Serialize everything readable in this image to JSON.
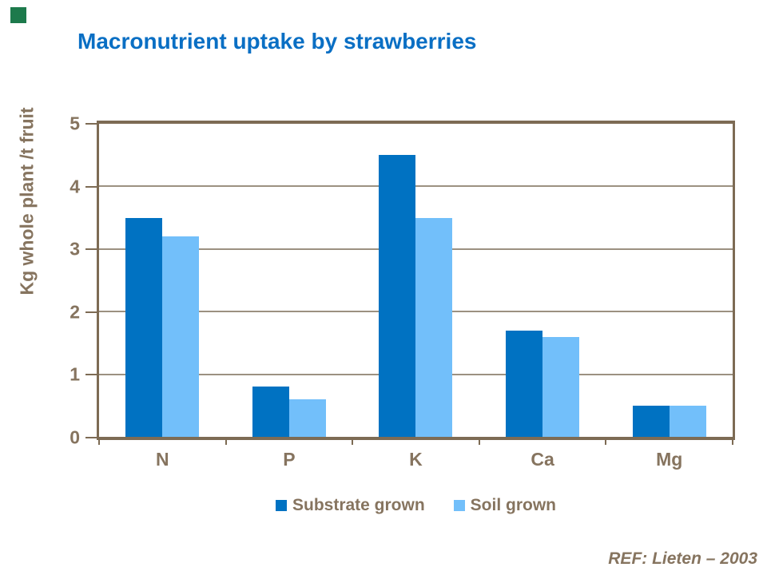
{
  "title": "Macronutrient uptake by strawberries",
  "ref_note": "REF:  Lieten – 2003",
  "colors": {
    "title_blue": "#0A6FC4",
    "axis_text_brown": "#86745F",
    "frame_brown": "#7D6B54",
    "gridline": "#9C9181",
    "substrate_blue": "#0072C2",
    "soil_blue": "#72BFFA",
    "logo_green": "#1D7A4C"
  },
  "chart_data": {
    "type": "bar",
    "title": "Macronutrient uptake by strawberries",
    "categories": [
      "N",
      "P",
      "K",
      "Ca",
      "Mg"
    ],
    "series": [
      {
        "name": "Substrate grown",
        "color": "#0072C2",
        "values": [
          3.5,
          0.8,
          4.5,
          1.7,
          0.5
        ]
      },
      {
        "name": "Soil grown",
        "color": "#72BFFA",
        "values": [
          3.2,
          0.6,
          3.5,
          1.6,
          0.5
        ]
      }
    ],
    "xlabel": "",
    "ylabel": "Kg whole plant /t fruit",
    "ylim": [
      0,
      5
    ],
    "yticks": [
      0,
      1,
      2,
      3,
      4,
      5
    ],
    "grid": true,
    "legend_position": "bottom"
  }
}
